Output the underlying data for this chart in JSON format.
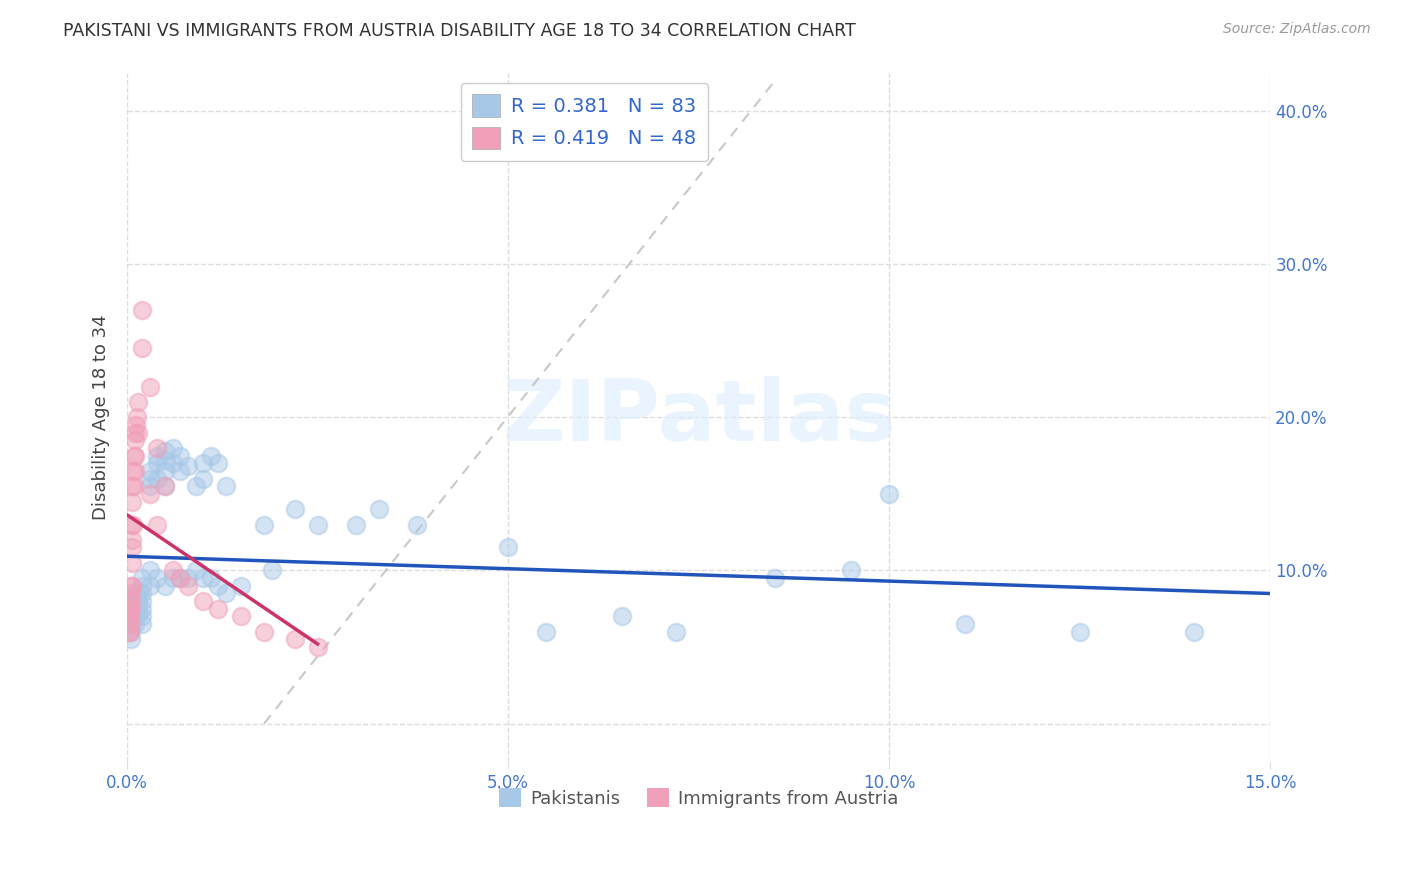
{
  "title": "PAKISTANI VS IMMIGRANTS FROM AUSTRIA DISABILITY AGE 18 TO 34 CORRELATION CHART",
  "source": "Source: ZipAtlas.com",
  "ylabel": "Disability Age 18 to 34",
  "xlim": [
    0.0,
    0.15
  ],
  "ylim": [
    -0.025,
    0.425
  ],
  "xticks": [
    0.0,
    0.05,
    0.1,
    0.15
  ],
  "xtick_labels": [
    "0.0%",
    "5.0%",
    "10.0%",
    "15.0%"
  ],
  "yticks": [
    0.0,
    0.1,
    0.2,
    0.3,
    0.4
  ],
  "ytick_labels": [
    "",
    "10.0%",
    "20.0%",
    "30.0%",
    "40.0%"
  ],
  "pakistani_color": "#A8C8E8",
  "austria_color": "#F0A0B8",
  "pakistani_line_color": "#2255BB",
  "austria_line_color": "#CC3366",
  "diagonal_color": "#BBBBBB",
  "pakistani_R": "0.381",
  "pakistani_N": "83",
  "austria_R": "0.419",
  "austria_N": "48",
  "legend_label_1": "Pakistanis",
  "legend_label_2": "Immigrants from Austria",
  "pakistani_x": [
    0.0005,
    0.0005,
    0.0005,
    0.0005,
    0.0005,
    0.0005,
    0.0007,
    0.0007,
    0.0007,
    0.0008,
    0.0008,
    0.0008,
    0.0008,
    0.001,
    0.001,
    0.001,
    0.001,
    0.001,
    0.0012,
    0.0012,
    0.0013,
    0.0014,
    0.0015,
    0.0015,
    0.0015,
    0.002,
    0.002,
    0.002,
    0.002,
    0.002,
    0.002,
    0.002,
    0.003,
    0.003,
    0.003,
    0.003,
    0.003,
    0.004,
    0.004,
    0.004,
    0.004,
    0.005,
    0.005,
    0.005,
    0.005,
    0.005,
    0.006,
    0.006,
    0.006,
    0.007,
    0.007,
    0.007,
    0.008,
    0.008,
    0.009,
    0.009,
    0.01,
    0.01,
    0.01,
    0.011,
    0.011,
    0.012,
    0.012,
    0.013,
    0.013,
    0.015,
    0.018,
    0.019,
    0.022,
    0.025,
    0.03,
    0.033,
    0.038,
    0.05,
    0.055,
    0.065,
    0.072,
    0.085,
    0.095,
    0.1,
    0.11,
    0.125,
    0.14
  ],
  "pakistani_y": [
    0.075,
    0.072,
    0.068,
    0.065,
    0.06,
    0.055,
    0.08,
    0.075,
    0.07,
    0.082,
    0.078,
    0.072,
    0.068,
    0.085,
    0.08,
    0.075,
    0.07,
    0.065,
    0.08,
    0.075,
    0.078,
    0.072,
    0.085,
    0.08,
    0.072,
    0.095,
    0.09,
    0.085,
    0.08,
    0.075,
    0.07,
    0.065,
    0.165,
    0.16,
    0.155,
    0.1,
    0.09,
    0.175,
    0.17,
    0.16,
    0.095,
    0.178,
    0.172,
    0.165,
    0.155,
    0.09,
    0.18,
    0.17,
    0.095,
    0.175,
    0.165,
    0.095,
    0.168,
    0.095,
    0.155,
    0.1,
    0.17,
    0.16,
    0.095,
    0.175,
    0.095,
    0.17,
    0.09,
    0.155,
    0.085,
    0.09,
    0.13,
    0.1,
    0.14,
    0.13,
    0.13,
    0.14,
    0.13,
    0.115,
    0.06,
    0.07,
    0.06,
    0.095,
    0.1,
    0.15,
    0.065,
    0.06,
    0.06
  ],
  "austria_x": [
    0.0003,
    0.0003,
    0.0003,
    0.0003,
    0.0004,
    0.0004,
    0.0004,
    0.0004,
    0.0005,
    0.0005,
    0.0005,
    0.0005,
    0.0005,
    0.0006,
    0.0006,
    0.0006,
    0.0006,
    0.0007,
    0.0007,
    0.0007,
    0.0008,
    0.0008,
    0.0009,
    0.0009,
    0.001,
    0.001,
    0.0011,
    0.0011,
    0.0012,
    0.0013,
    0.0015,
    0.0015,
    0.002,
    0.002,
    0.003,
    0.003,
    0.004,
    0.004,
    0.005,
    0.006,
    0.007,
    0.008,
    0.01,
    0.012,
    0.015,
    0.018,
    0.022,
    0.025
  ],
  "austria_y": [
    0.075,
    0.072,
    0.068,
    0.06,
    0.08,
    0.075,
    0.07,
    0.06,
    0.09,
    0.085,
    0.08,
    0.075,
    0.065,
    0.13,
    0.12,
    0.115,
    0.09,
    0.155,
    0.145,
    0.105,
    0.165,
    0.13,
    0.175,
    0.155,
    0.185,
    0.165,
    0.19,
    0.175,
    0.195,
    0.2,
    0.21,
    0.19,
    0.245,
    0.27,
    0.22,
    0.15,
    0.18,
    0.13,
    0.155,
    0.1,
    0.095,
    0.09,
    0.08,
    0.075,
    0.07,
    0.06,
    0.055,
    0.05
  ],
  "watermark": "ZIPatlas",
  "background_color": "#FFFFFF",
  "grid_color": "#DDDDDD"
}
